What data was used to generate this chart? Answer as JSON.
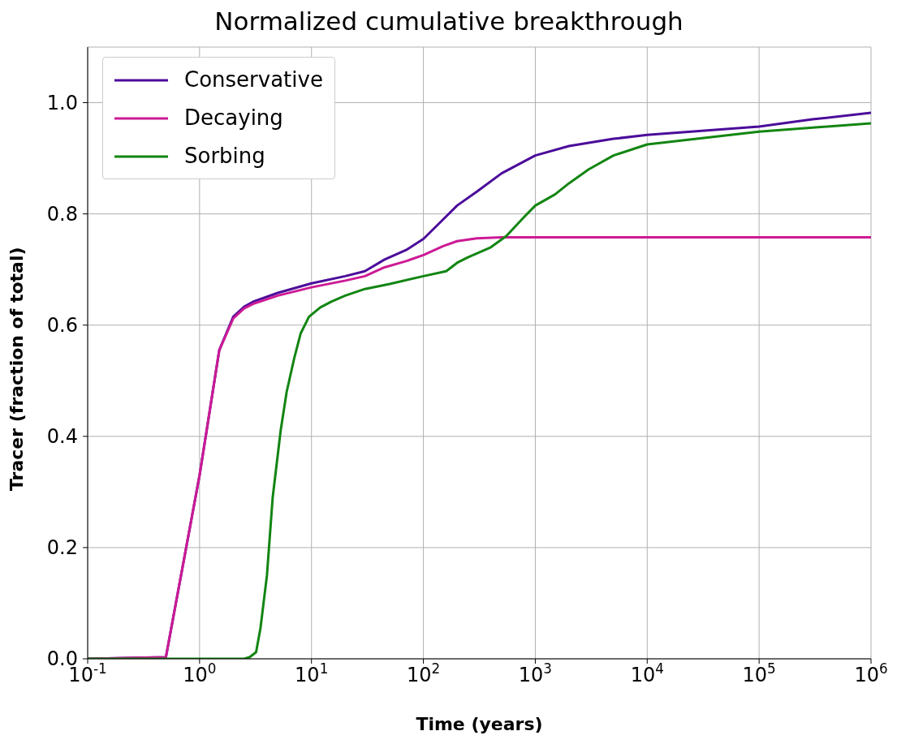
{
  "chart_data": {
    "type": "line",
    "title": "Normalized cumulative breakthrough",
    "xlabel": "Time (years)",
    "ylabel": "Tracer (fraction of total)",
    "log": "x",
    "grid": true,
    "legend": "top left",
    "line_style": "solid",
    "marker": "none",
    "xlim": [
      0.1,
      1000000
    ],
    "ylim": [
      0,
      1.1
    ],
    "xticks": [
      {
        "value": 0.1,
        "label": "10$^{-1}$"
      },
      {
        "value": 1,
        "label": "10$^{0}$"
      },
      {
        "value": 10,
        "label": "10$^{1}$"
      },
      {
        "value": 100,
        "label": "10$^{2}$"
      },
      {
        "value": 1000,
        "label": "10$^{3}$"
      },
      {
        "value": 10000,
        "label": "10$^{4}$"
      },
      {
        "value": 100000,
        "label": "10$^{5}$"
      },
      {
        "value": 1000000,
        "label": "10$^{6}$"
      }
    ],
    "yticks": [
      {
        "value": 0,
        "label": "0.0"
      },
      {
        "value": 0.2,
        "label": "0.2"
      },
      {
        "value": 0.4,
        "label": "0.4"
      },
      {
        "value": 0.6,
        "label": "0.6"
      },
      {
        "value": 0.8,
        "label": "0.8"
      },
      {
        "value": 1,
        "label": "1.0"
      }
    ],
    "series": [
      {
        "name": "Conservative",
        "color": "#4b0c9a",
        "x": [
          0.1,
          0.5,
          1,
          1.5,
          2,
          2.5,
          3,
          5,
          10,
          20,
          30,
          45,
          70,
          100,
          150,
          200,
          300,
          500,
          1000,
          2000,
          5000,
          10000,
          100000,
          300000,
          1000000
        ],
        "values": [
          0,
          0.003,
          0.33,
          0.555,
          0.615,
          0.633,
          0.642,
          0.658,
          0.675,
          0.688,
          0.697,
          0.718,
          0.735,
          0.755,
          0.79,
          0.815,
          0.84,
          0.873,
          0.905,
          0.922,
          0.935,
          0.942,
          0.957,
          0.97,
          0.982
        ]
      },
      {
        "name": "Decaying",
        "color": "#cc1a95",
        "x": [
          0.1,
          0.5,
          1,
          1.5,
          2,
          2.5,
          3,
          5,
          10,
          20,
          30,
          45,
          70,
          100,
          150,
          200,
          300,
          500,
          1000,
          1000000
        ],
        "values": [
          0,
          0.003,
          0.33,
          0.555,
          0.612,
          0.63,
          0.638,
          0.653,
          0.668,
          0.68,
          0.688,
          0.704,
          0.715,
          0.726,
          0.742,
          0.751,
          0.756,
          0.758,
          0.758,
          0.758
        ]
      },
      {
        "name": "Sorbing",
        "color": "#128512",
        "x": [
          0.1,
          2.5,
          2.8,
          3.2,
          3.5,
          4,
          4.5,
          5.3,
          6,
          7,
          8,
          9.5,
          12,
          15,
          20,
          30,
          50,
          100,
          160,
          200,
          250,
          400,
          550,
          800,
          1000,
          1500,
          2000,
          3000,
          5000,
          10000,
          100000,
          1000000
        ],
        "values": [
          0,
          0,
          0.003,
          0.012,
          0.055,
          0.15,
          0.29,
          0.41,
          0.48,
          0.54,
          0.585,
          0.615,
          0.632,
          0.642,
          0.653,
          0.665,
          0.674,
          0.688,
          0.697,
          0.712,
          0.722,
          0.74,
          0.76,
          0.795,
          0.815,
          0.835,
          0.855,
          0.88,
          0.905,
          0.925,
          0.948,
          0.963
        ]
      }
    ]
  }
}
